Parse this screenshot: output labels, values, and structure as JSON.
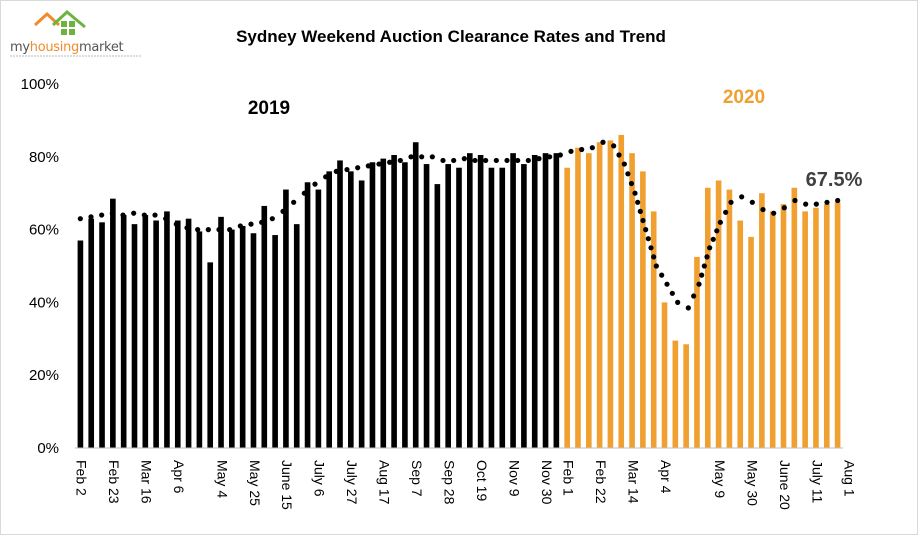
{
  "logo": {
    "wordmark_a": "my",
    "wordmark_b": "housing",
    "wordmark_c": "market"
  },
  "chart_data": {
    "type": "bar",
    "title": "Sydney Weekend Auction Clearance Rates and Trend",
    "y_unit": "%",
    "ylim": [
      0,
      100
    ],
    "y_ticks": [
      "0%",
      "20%",
      "40%",
      "60%",
      "80%",
      "100%"
    ],
    "grid": false,
    "annotations": {
      "label_2019": "2019",
      "label_2020": "2020",
      "latest_value": "67.5%"
    },
    "tick_labels": [
      {
        "index": 0,
        "label": "Feb 2"
      },
      {
        "index": 3,
        "label": "Feb 23"
      },
      {
        "index": 6,
        "label": "Mar 16"
      },
      {
        "index": 9,
        "label": "Apr 6"
      },
      {
        "index": 13,
        "label": "May 4"
      },
      {
        "index": 16,
        "label": "May 25"
      },
      {
        "index": 19,
        "label": "June 15"
      },
      {
        "index": 22,
        "label": "July 6"
      },
      {
        "index": 25,
        "label": "July 27"
      },
      {
        "index": 28,
        "label": "Aug 17"
      },
      {
        "index": 31,
        "label": "Sep 7"
      },
      {
        "index": 34,
        "label": "Sep 28"
      },
      {
        "index": 37,
        "label": "Oct 19"
      },
      {
        "index": 40,
        "label": "Nov 9"
      },
      {
        "index": 43,
        "label": "Nov 30"
      },
      {
        "index": 45,
        "label": "Feb 1"
      },
      {
        "index": 48,
        "label": "Feb 22"
      },
      {
        "index": 51,
        "label": "Mar 14"
      },
      {
        "index": 54,
        "label": "Apr 4"
      },
      {
        "index": 59,
        "label": "May 9"
      },
      {
        "index": 62,
        "label": "May 30"
      },
      {
        "index": 65,
        "label": "June 20"
      },
      {
        "index": 68,
        "label": "July 11"
      },
      {
        "index": 71,
        "label": "Aug 1"
      }
    ],
    "series": [
      {
        "year": "2019",
        "color": "#000000",
        "values": [
          57,
          63,
          62,
          68.5,
          64,
          61.5,
          64,
          62.5,
          65,
          62.5,
          63,
          59.5,
          51,
          63.5,
          60,
          61,
          59,
          66.5,
          58.5,
          71,
          61.5,
          73,
          71,
          76,
          79,
          76,
          73.5,
          78.5,
          79.5,
          80.5,
          78.5,
          84,
          78,
          72.5,
          78,
          77,
          81,
          80.5,
          77,
          77,
          81,
          78,
          80.5,
          81,
          81
        ]
      },
      {
        "year": "2020",
        "color": "#f0a030",
        "values": [
          77,
          82.5,
          81,
          84,
          84.5,
          86,
          81,
          76,
          65,
          40,
          29.5,
          28.5,
          52.5,
          71.5,
          73.5,
          71,
          62.5,
          58,
          70,
          65,
          67,
          71.5,
          65,
          66,
          67,
          67.5
        ]
      }
    ],
    "trend": {
      "style": "dotted",
      "color": "#000000",
      "values": [
        63,
        63.5,
        64,
        64.5,
        64,
        64.5,
        64,
        64,
        63,
        61.5,
        60.5,
        60,
        60,
        60,
        60,
        61,
        61.5,
        62,
        63,
        65,
        67.5,
        70,
        72.5,
        74.5,
        76,
        76.5,
        77,
        77.5,
        78,
        78.5,
        79,
        80,
        80,
        80,
        79,
        79,
        79.5,
        79,
        79,
        79,
        79,
        79,
        79,
        79.5,
        80,
        80.5,
        81.5,
        82,
        82.5,
        84,
        83,
        78,
        70,
        60,
        50,
        45,
        40,
        38.5,
        45,
        55,
        62,
        67.5,
        69,
        67.5,
        65.5,
        64.5,
        66,
        68,
        67,
        67,
        67.5,
        68
      ]
    }
  }
}
